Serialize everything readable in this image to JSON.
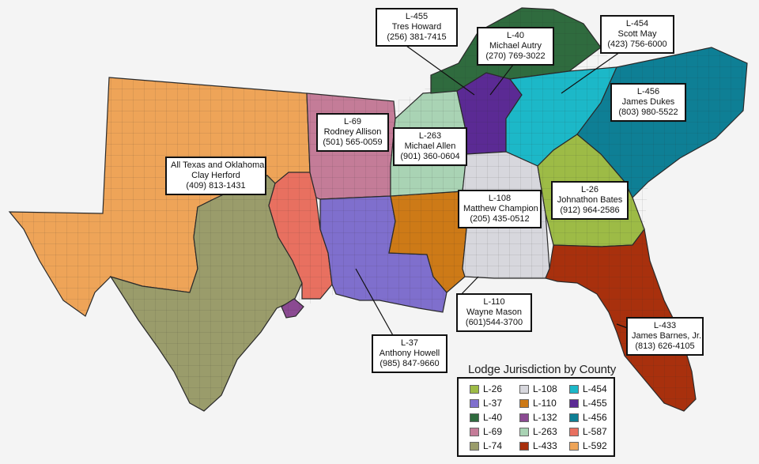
{
  "colors": {
    "L-26": "#9dbb46",
    "L-37": "#7f6fcd",
    "L-40": "#2f6b3e",
    "L-69": "#c47c98",
    "L-74": "#9a9c6b",
    "L-108": "#d7d7dd",
    "L-110": "#cd7a17",
    "L-132": "#8b4a92",
    "L-263": "#a9d3b4",
    "L-433": "#a8300d",
    "L-454": "#1cb8c8",
    "L-455": "#5b2a94",
    "L-456": "#0e7f95",
    "L-587": "#e87060",
    "L-592": "#eea458"
  },
  "callouts": [
    {
      "lines": [
        "L-455",
        "Tres Howard",
        "(256) 381-7415"
      ]
    },
    {
      "lines": [
        "L-40",
        "Michael Autry",
        "(270) 769-3022"
      ]
    },
    {
      "lines": [
        "L-454",
        "Scott May",
        "(423) 756-6000"
      ]
    },
    {
      "lines": [
        "L-456",
        "James Dukes",
        "(803) 980-5522"
      ]
    },
    {
      "lines": [
        "L-69",
        "Rodney Allison",
        "(501) 565-0059"
      ]
    },
    {
      "lines": [
        "L-263",
        "Michael Allen",
        "(901) 360-0604"
      ]
    },
    {
      "lines": [
        "All Texas and Oklahoma",
        "Clay Herford",
        "(409) 813-1431"
      ]
    },
    {
      "lines": [
        "L-108",
        "Matthew Champion",
        "(205) 435-0512"
      ]
    },
    {
      "lines": [
        "L-26",
        "Johnathon Bates",
        "(912) 964-2586"
      ]
    },
    {
      "lines": [
        "L-110",
        "Wayne Mason",
        "(601)544-3700"
      ]
    },
    {
      "lines": [
        "L-37",
        "Anthony Howell",
        "(985) 847-9660"
      ]
    },
    {
      "lines": [
        "L-433",
        "James Barnes, Jr.",
        "(813) 626-4105"
      ]
    }
  ],
  "legend": {
    "title": "Lodge Jurisdiction by County",
    "items": [
      "L-26",
      "L-37",
      "L-40",
      "L-69",
      "L-74",
      "L-108",
      "L-110",
      "L-132",
      "L-263",
      "L-433",
      "L-454",
      "L-455",
      "L-456",
      "L-587",
      "L-592"
    ]
  }
}
